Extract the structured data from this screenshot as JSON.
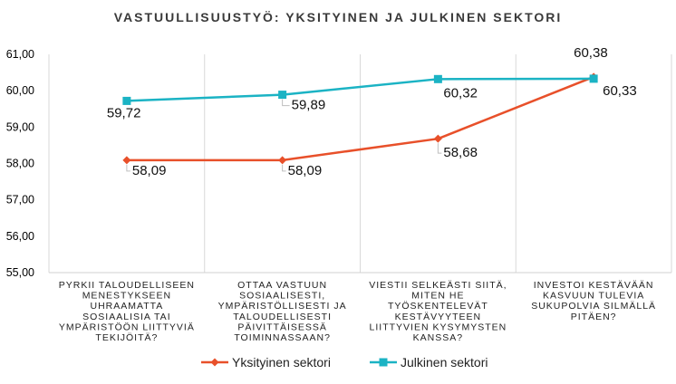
{
  "chart_data": {
    "type": "line",
    "title": "VASTUULLISUUSTYÖ: YKSITYINEN JA JULKINEN SEKTORI",
    "categories": [
      [
        "PYRKII TALOUDELLISEEN",
        "MENESTYKSEEN",
        "UHRAAMATTA",
        "SOSIAALISIA TAI",
        "YMPÄRISTÖÖN LIITTYVIÄ",
        "TEKIJÖITÄ?"
      ],
      [
        "OTTAA VASTUUN",
        "SOSIAALISESTI,",
        "YMPÄRISTÖLLISESTI JA",
        "TALOUDELLISESTI",
        "PÄIVITTÄISESSÄ",
        "TOIMINNASSAAN?"
      ],
      [
        "VIESTII SELKEÄSTI SIITÄ,",
        "MITEN HE",
        "TYÖSKENTELEVÄT",
        "KESTÄVYYTEEN",
        "LIITTYVIEN KYSYMYSTEN",
        "KANSSA?"
      ],
      [
        "INVESTOI KESTÄVÄÄN",
        "KASVUUN TULEVIA",
        "SUKUPOLVIA SILMÄLLÄ",
        "PITÄEN?"
      ]
    ],
    "series": [
      {
        "name": "Yksityinen sektori",
        "color": "#E8502A",
        "marker": "diamond",
        "values": [
          58.09,
          58.09,
          58.68,
          60.38
        ],
        "labels": [
          "58,09",
          "58,09",
          "58,68",
          "60,38"
        ]
      },
      {
        "name": "Julkinen sektori",
        "color": "#1BB3C4",
        "marker": "square",
        "values": [
          59.72,
          59.89,
          60.32,
          60.33
        ],
        "labels": [
          "59,72",
          "59,89",
          "60,32",
          "60,33"
        ]
      }
    ],
    "ylim": [
      55,
      61
    ],
    "yticks": [
      "55,00",
      "56,00",
      "57,00",
      "58,00",
      "59,00",
      "60,00",
      "61,00"
    ],
    "grid": "vertical-category-lines",
    "legend": "bottom"
  }
}
